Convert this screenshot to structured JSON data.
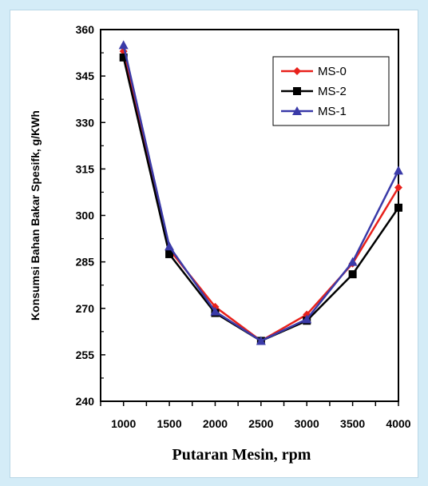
{
  "chart_data": {
    "type": "line",
    "xlabel": "Putaran Mesin, rpm",
    "ylabel": "Konsumsi Bahan Bakar Spesifk, g/KWh",
    "ylim": [
      240,
      360
    ],
    "yticks": [
      240,
      255,
      270,
      285,
      300,
      315,
      330,
      345,
      360
    ],
    "x": [
      1000,
      1500,
      2000,
      2500,
      3000,
      3500,
      4000
    ],
    "legend_position": "top-right",
    "grid": false,
    "series": [
      {
        "name": "MS-0",
        "color": "#e8211b",
        "marker": "diamond",
        "values": [
          353,
          289,
          270.5,
          259.5,
          268,
          284.5,
          309
        ]
      },
      {
        "name": "MS-2",
        "color": "#000000",
        "marker": "square",
        "values": [
          351,
          287.5,
          268.5,
          259.5,
          266,
          281,
          302.5
        ]
      },
      {
        "name": "MS-1",
        "color": "#3a3aa8",
        "marker": "triangle",
        "values": [
          355,
          290,
          269,
          259.5,
          266.5,
          285,
          314.5
        ]
      }
    ]
  }
}
